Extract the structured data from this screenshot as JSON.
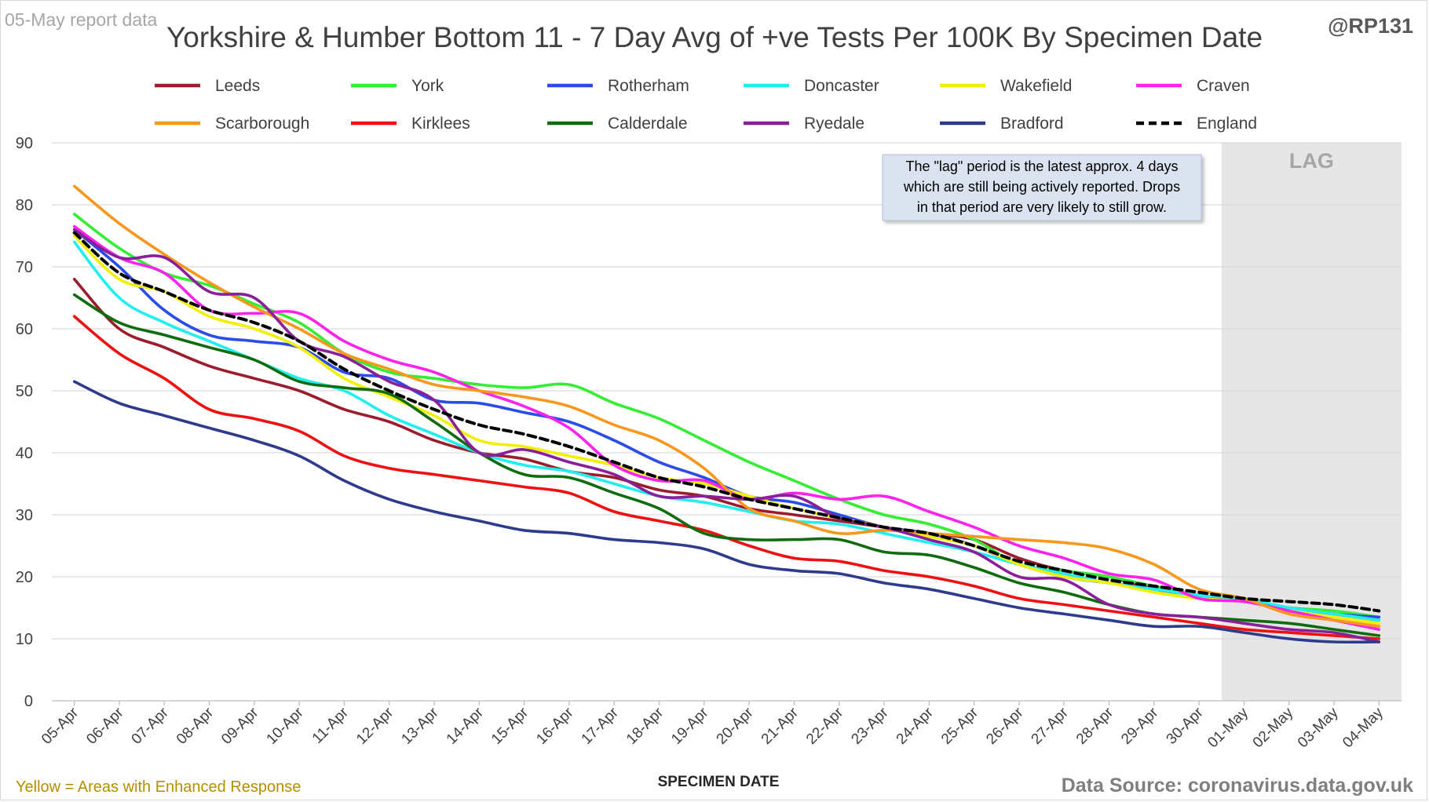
{
  "header": {
    "report_label": "05-May report data",
    "handle": "@RP131"
  },
  "footer": {
    "enhanced_note": "Yellow = Areas with Enhanced Response",
    "source": "Data Source: coronavirus.data.gov.uk"
  },
  "annotation": {
    "lag_label": "LAG",
    "note_lines": [
      "The \"lag\" period is the latest approx. 4 days",
      "which are still being actively reported.  Drops",
      "in that period are very likely to still grow."
    ]
  },
  "colors": {
    "lag_shade": "#e6e6e6",
    "gridline": "#d9d9d9",
    "note_bg": "#dbe3f0",
    "enhanced_note": "#b38f00",
    "source_text": "#7f7f7f"
  },
  "chart_data": {
    "type": "line",
    "title": "Yorkshire & Humber Bottom 11 - 7 Day Avg of +ve Tests Per 100K By Specimen Date",
    "xlabel": "SPECIMEN DATE",
    "ylabel": "",
    "ylim": [
      0,
      90
    ],
    "yticks": [
      0,
      10,
      20,
      30,
      40,
      50,
      60,
      70,
      80,
      90
    ],
    "grid": true,
    "legend_position": "top",
    "lag_start": "01-May",
    "x": [
      "05-Apr",
      "06-Apr",
      "07-Apr",
      "08-Apr",
      "09-Apr",
      "10-Apr",
      "11-Apr",
      "12-Apr",
      "13-Apr",
      "14-Apr",
      "15-Apr",
      "16-Apr",
      "17-Apr",
      "18-Apr",
      "19-Apr",
      "20-Apr",
      "21-Apr",
      "22-Apr",
      "23-Apr",
      "24-Apr",
      "25-Apr",
      "26-Apr",
      "27-Apr",
      "28-Apr",
      "29-Apr",
      "30-Apr",
      "01-May",
      "02-May",
      "03-May",
      "04-May"
    ],
    "series": [
      {
        "name": "Leeds",
        "color": "#9b1c2c",
        "dash": false,
        "values": [
          68,
          60,
          57,
          54,
          52,
          50,
          47,
          45,
          42,
          40,
          39,
          37,
          36,
          34,
          33,
          31,
          30,
          29,
          28,
          27,
          26,
          23,
          21,
          20,
          18,
          17,
          16,
          15,
          14,
          13
        ]
      },
      {
        "name": "York",
        "color": "#33ee33",
        "dash": false,
        "values": [
          78.5,
          73,
          69,
          67,
          64,
          61,
          56,
          53,
          52,
          51,
          50.5,
          51,
          48,
          45.5,
          42,
          38.5,
          35.5,
          32.5,
          30,
          28.5,
          26,
          22,
          21,
          20,
          18.5,
          17,
          16,
          15,
          14.5,
          13.5
        ]
      },
      {
        "name": "Rotherham",
        "color": "#2a4de8",
        "dash": false,
        "values": [
          76,
          70,
          63,
          59,
          58,
          57,
          53,
          52,
          48.5,
          48,
          46.5,
          45,
          42,
          38.5,
          36,
          33,
          32,
          30,
          28,
          27,
          25,
          22,
          20,
          19,
          18,
          17,
          16,
          15,
          14,
          13.5
        ]
      },
      {
        "name": "Doncaster",
        "color": "#22eeee",
        "dash": false,
        "values": [
          74,
          65,
          61,
          58,
          55,
          52,
          50,
          46,
          43,
          40,
          38,
          37,
          35,
          33,
          32,
          30.5,
          29,
          28.5,
          27,
          25.5,
          24,
          22,
          20.5,
          19,
          18,
          17,
          16.5,
          15,
          14,
          13
        ]
      },
      {
        "name": "Wakefield",
        "color": "#f0f000",
        "dash": false,
        "values": [
          75,
          68,
          66,
          62,
          60,
          57,
          52,
          49,
          46,
          42,
          41,
          39.5,
          38,
          36,
          35,
          33,
          31,
          29.5,
          28,
          26.5,
          25,
          22,
          20,
          19,
          17.5,
          16.5,
          16,
          14.5,
          13.5,
          12.5
        ]
      },
      {
        "name": "Craven",
        "color": "#ff22ee",
        "dash": false,
        "values": [
          76.5,
          71.5,
          69,
          63,
          62.5,
          62.5,
          58,
          55,
          53,
          50,
          47.5,
          44,
          38,
          35.5,
          35.5,
          32.5,
          33.5,
          32.5,
          33,
          30.5,
          28,
          25,
          23,
          20.5,
          19.5,
          16.5,
          16,
          14.5,
          13,
          11.5
        ]
      },
      {
        "name": "Scarborough",
        "color": "#f7981d",
        "dash": false,
        "values": [
          83,
          77,
          72,
          67.5,
          63.5,
          60,
          56,
          53.5,
          51,
          50,
          49,
          47.5,
          44.5,
          42,
          37.5,
          31,
          29,
          27,
          27.5,
          27,
          26.5,
          26,
          25.5,
          24.5,
          22,
          18,
          16.5,
          14,
          13,
          12
        ]
      },
      {
        "name": "Kirklees",
        "color": "#ee1111",
        "dash": false,
        "values": [
          62,
          56,
          52,
          47,
          45.5,
          43.5,
          39.5,
          37.5,
          36.5,
          35.5,
          34.5,
          33.5,
          30.5,
          29,
          27.5,
          25,
          23,
          22.5,
          21,
          20,
          18.5,
          16.5,
          15.5,
          14.5,
          13.5,
          12.5,
          11.5,
          11,
          10.5,
          10
        ]
      },
      {
        "name": "Calderdale",
        "color": "#0e6b0e",
        "dash": false,
        "values": [
          65.5,
          61,
          59,
          57,
          55,
          51.5,
          50.5,
          49.5,
          45,
          40,
          36.5,
          36,
          33.5,
          31,
          27,
          26,
          26,
          26,
          24,
          23.5,
          21.5,
          19,
          17.5,
          15.5,
          14,
          13.5,
          13,
          12.5,
          11.5,
          10.5
        ]
      },
      {
        "name": "Ryedale",
        "color": "#8a1f9a",
        "dash": false,
        "values": [
          76,
          71.5,
          71.5,
          66,
          65,
          58,
          55.5,
          51.5,
          48.5,
          40,
          40.5,
          38.5,
          36.5,
          33,
          33,
          32.5,
          33,
          29.5,
          28,
          26,
          24,
          20,
          19.5,
          15.5,
          14,
          13.5,
          12.5,
          11.5,
          11,
          9.5
        ]
      },
      {
        "name": "Bradford",
        "color": "#2e3a8c",
        "dash": false,
        "values": [
          51.5,
          48,
          46,
          44,
          42,
          39.5,
          35.5,
          32.5,
          30.5,
          29,
          27.5,
          27,
          26,
          25.5,
          24.5,
          22,
          21,
          20.5,
          19,
          18,
          16.5,
          15,
          14,
          13,
          12,
          12,
          11,
          10,
          9.5,
          9.5
        ]
      },
      {
        "name": "England",
        "color": "#000000",
        "dash": true,
        "values": [
          75.5,
          69,
          66,
          63,
          61,
          58,
          53.5,
          50,
          47,
          44.5,
          43,
          41,
          38.5,
          36,
          34.5,
          32.5,
          31,
          29.5,
          28,
          27,
          25,
          22.5,
          21,
          19.5,
          18.5,
          17.5,
          16.5,
          16,
          15.5,
          14.5
        ]
      }
    ]
  }
}
